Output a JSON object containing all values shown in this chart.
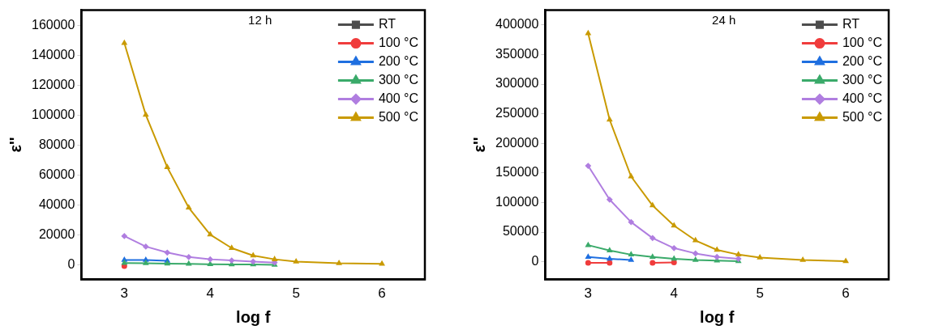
{
  "chart_data": [
    {
      "type": "line",
      "annotations": [
        "12 h"
      ],
      "xlabel": "log f",
      "ylabel": "ε''",
      "xlim": [
        2.5,
        6.5
      ],
      "xticks": [
        3,
        4,
        5,
        6
      ],
      "ylim": [
        -10000,
        170000
      ],
      "yticks": [
        0,
        20000,
        40000,
        60000,
        80000,
        100000,
        120000,
        140000,
        160000
      ],
      "grid": false,
      "legend": "top right",
      "line_style": "solid",
      "x": [
        3,
        3.25,
        3.5,
        3.75,
        4,
        4.25,
        4.5,
        4.75,
        5,
        5.5,
        6
      ],
      "series": [
        {
          "name": "RT",
          "color": "#4d4d4d",
          "marker": "square",
          "values": [
            null,
            null,
            null,
            null,
            null,
            null,
            null,
            null,
            null,
            null,
            null
          ]
        },
        {
          "name": "100 °C",
          "color": "#f03c3c",
          "marker": "circle",
          "values": [
            -1000,
            null,
            null,
            null,
            null,
            null,
            null,
            null,
            null,
            null,
            null
          ]
        },
        {
          "name": "200 °C",
          "color": "#1f6fe0",
          "marker": "triangle",
          "values": [
            3000,
            3000,
            2500,
            null,
            null,
            null,
            null,
            null,
            null,
            null,
            null
          ]
        },
        {
          "name": "300 °C",
          "color": "#3aaa6a",
          "marker": "triangle",
          "values": [
            1000,
            800,
            600,
            400,
            200,
            0,
            0,
            -200,
            null,
            null,
            null
          ]
        },
        {
          "name": "400 °C",
          "color": "#b07ee0",
          "marker": "diamond",
          "values": [
            19000,
            12000,
            8000,
            5000,
            3500,
            2700,
            2000,
            1300,
            null,
            null,
            null
          ]
        },
        {
          "name": "500 °C",
          "color": "#c99a00",
          "marker": "triangle",
          "values": [
            148000,
            100000,
            65000,
            38000,
            20000,
            11000,
            6000,
            3500,
            2000,
            800,
            400
          ]
        }
      ]
    },
    {
      "type": "line",
      "annotations": [
        "24 h"
      ],
      "xlabel": "log f",
      "ylabel": "ε''",
      "xlim": [
        2.5,
        6.5
      ],
      "xticks": [
        3,
        4,
        5,
        6
      ],
      "ylim": [
        -30000,
        425000
      ],
      "yticks": [
        0,
        50000,
        100000,
        150000,
        200000,
        250000,
        300000,
        350000,
        400000
      ],
      "grid": false,
      "legend": "top right",
      "line_style": "solid",
      "x": [
        3,
        3.25,
        3.5,
        3.75,
        4,
        4.25,
        4.5,
        4.75,
        5,
        5.5,
        6
      ],
      "series": [
        {
          "name": "RT",
          "color": "#4d4d4d",
          "marker": "square",
          "values": [
            null,
            null,
            null,
            null,
            null,
            null,
            null,
            null,
            null,
            null,
            null
          ]
        },
        {
          "name": "100 °C",
          "color": "#f03c3c",
          "marker": "circle",
          "values": [
            -2000,
            -2000,
            null,
            -2000,
            -1000,
            null,
            null,
            null,
            null,
            null,
            null
          ]
        },
        {
          "name": "200 °C",
          "color": "#1f6fe0",
          "marker": "triangle",
          "values": [
            8000,
            5000,
            3000,
            null,
            null,
            null,
            null,
            null,
            null,
            null,
            null
          ]
        },
        {
          "name": "300 °C",
          "color": "#3aaa6a",
          "marker": "triangle",
          "values": [
            28000,
            19000,
            12000,
            8000,
            5000,
            3000,
            2000,
            1000,
            null,
            null,
            null
          ]
        },
        {
          "name": "400 °C",
          "color": "#b07ee0",
          "marker": "diamond",
          "values": [
            162000,
            105000,
            67000,
            40000,
            23000,
            14000,
            8000,
            5000,
            null,
            null,
            null
          ]
        },
        {
          "name": "500 °C",
          "color": "#c99a00",
          "marker": "triangle",
          "values": [
            386000,
            240000,
            144000,
            95000,
            61000,
            36000,
            20000,
            12000,
            7000,
            3000,
            1000
          ]
        }
      ]
    }
  ]
}
